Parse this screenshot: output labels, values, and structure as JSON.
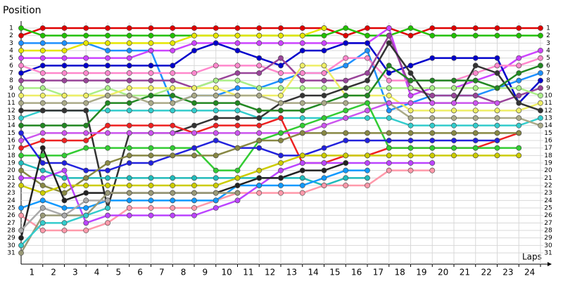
{
  "chart_data": {
    "type": "line",
    "y_title": "Position",
    "x_title": "Laps",
    "xlim": [
      0,
      24
    ],
    "xticks": [
      1,
      2,
      3,
      4,
      5,
      6,
      7,
      8,
      9,
      10,
      11,
      12,
      13,
      14,
      15,
      16,
      17,
      18,
      19,
      20,
      21,
      22,
      23,
      24
    ],
    "ylim": [
      1,
      31
    ],
    "y_inverted": true,
    "yticks": [
      1,
      2,
      3,
      4,
      5,
      6,
      7,
      8,
      9,
      10,
      11,
      12,
      13,
      14,
      15,
      16,
      17,
      18,
      19,
      20,
      21,
      22,
      23,
      24,
      25,
      26,
      27,
      28,
      29,
      30,
      31
    ],
    "grid": true,
    "series": [
      {
        "color": "#e00000",
        "values": [
          2,
          1,
          1,
          1,
          1,
          1,
          1,
          1,
          1,
          1,
          1,
          1,
          1,
          1,
          1,
          2,
          1,
          1,
          2,
          1,
          1,
          1,
          1,
          1,
          1
        ]
      },
      {
        "color": "#22c000",
        "values": [
          1,
          2,
          2,
          2,
          2,
          2,
          2,
          2,
          2,
          2,
          2,
          2,
          2,
          2,
          2,
          1,
          2,
          2,
          1,
          2,
          2,
          2,
          2,
          2,
          2
        ]
      },
      {
        "color": "#1e90ff",
        "values": [
          3,
          3,
          3,
          3,
          4,
          4,
          4,
          11,
          10,
          10,
          9,
          9,
          8,
          7,
          7,
          6,
          4,
          12,
          11,
          10,
          10,
          10,
          9,
          8,
          7
        ]
      },
      {
        "color": "#e6e600",
        "values": [
          4,
          4,
          4,
          3,
          3,
          3,
          3,
          3,
          2,
          2,
          2,
          2,
          2,
          2,
          1,
          null,
          null,
          null,
          null,
          null,
          null,
          null,
          null,
          null,
          null
        ]
      },
      {
        "color": "#cc44ff",
        "values": [
          5,
          5,
          5,
          5,
          5,
          5,
          4,
          4,
          3,
          3,
          3,
          3,
          3,
          3,
          3,
          3,
          3,
          1,
          10,
          9,
          9,
          8,
          7,
          5,
          4
        ]
      },
      {
        "color": "#0000cc",
        "values": [
          7,
          6,
          6,
          6,
          6,
          6,
          6,
          6,
          4,
          3,
          4,
          5,
          6,
          4,
          4,
          3,
          3,
          7,
          6,
          5,
          5,
          5,
          5,
          11,
          8
        ]
      },
      {
        "color": "#ff88cc",
        "values": [
          6,
          7,
          7,
          7,
          7,
          7,
          7,
          7,
          7,
          6,
          6,
          6,
          7,
          7,
          7,
          5,
          5,
          8,
          8,
          8,
          8,
          7,
          6,
          6,
          5
        ]
      },
      {
        "color": "#994499",
        "values": [
          8,
          8,
          8,
          8,
          8,
          8,
          8,
          8,
          9,
          8,
          7,
          7,
          5,
          8,
          8,
          8,
          7,
          2,
          9,
          10,
          10,
          10,
          11,
          10,
          9
        ]
      },
      {
        "color": "#aaee88",
        "values": [
          9,
          9,
          10,
          10,
          9,
          10,
          10,
          9,
          9,
          8,
          8,
          9,
          9,
          9,
          9,
          9,
          9,
          9,
          9,
          9,
          9,
          9,
          9,
          9,
          10
        ]
      },
      {
        "color": "#eeee66",
        "values": [
          10,
          10,
          10,
          10,
          10,
          9,
          9,
          9,
          9,
          9,
          10,
          10,
          10,
          6,
          6,
          10,
          10,
          10,
          12,
          12,
          12,
          12,
          12,
          12,
          11
        ]
      },
      {
        "color": "#33cccc",
        "values": [
          13,
          12,
          12,
          12,
          12,
          12,
          12,
          12,
          12,
          12,
          12,
          13,
          13,
          13,
          13,
          13,
          13,
          13,
          14,
          14,
          14,
          14,
          14,
          14,
          13
        ]
      },
      {
        "color": "#333333",
        "values": [
          12,
          12,
          12,
          12,
          25,
          15,
          15,
          15,
          14,
          13,
          13,
          13,
          11,
          10,
          10,
          9,
          8,
          3,
          7,
          11,
          11,
          6,
          7,
          11,
          12
        ]
      },
      {
        "color": "#228822",
        "values": [
          14,
          14,
          14,
          14,
          11,
          11,
          10,
          10,
          11,
          11,
          11,
          12,
          12,
          12,
          11,
          10,
          10,
          6,
          8,
          8,
          8,
          8,
          9,
          7,
          6
        ]
      },
      {
        "color": "#aaaa88",
        "values": [
          11,
          11,
          11,
          11,
          10,
          10,
          11,
          11,
          10,
          10,
          10,
          10,
          11,
          11,
          11,
          11,
          11,
          11,
          13,
          13,
          13,
          13,
          13,
          13,
          14
        ]
      },
      {
        "color": "#ee2222",
        "values": [
          17,
          16,
          16,
          16,
          14,
          14,
          14,
          14,
          15,
          14,
          14,
          14,
          13,
          19,
          19,
          18,
          18,
          17,
          17,
          17,
          17,
          17,
          16,
          15,
          null
        ]
      },
      {
        "color": "#cc55ee",
        "values": [
          16,
          15,
          15,
          15,
          15,
          15,
          15,
          15,
          15,
          15,
          15,
          15,
          15,
          15,
          14,
          13,
          12,
          11,
          11,
          11,
          11,
          11,
          11,
          null,
          null
        ]
      },
      {
        "color": "#33cc33",
        "values": [
          18,
          18,
          18,
          17,
          17,
          17,
          17,
          17,
          17,
          20,
          20,
          16,
          15,
          14,
          13,
          12,
          11,
          17,
          17,
          17,
          17,
          17,
          17,
          17,
          null
        ]
      },
      {
        "color": "#2222dd",
        "values": [
          15,
          19,
          19,
          20,
          20,
          19,
          19,
          18,
          17,
          16,
          17,
          17,
          18,
          18,
          17,
          16,
          16,
          16,
          16,
          16,
          16,
          16,
          16,
          null,
          null
        ]
      },
      {
        "color": "#22bbbb",
        "values": [
          19,
          20,
          21,
          21,
          21,
          21,
          21,
          21,
          21,
          21,
          21,
          21,
          21,
          21,
          22,
          21,
          21,
          null,
          null,
          null,
          null,
          null,
          null,
          null,
          null
        ]
      },
      {
        "color": "#888844",
        "values": [
          20,
          22,
          23,
          21,
          19,
          18,
          18,
          18,
          18,
          18,
          17,
          16,
          16,
          15,
          15,
          15,
          15,
          15,
          15,
          15,
          15,
          15,
          15,
          15,
          null
        ]
      },
      {
        "color": "#ff99aa",
        "values": [
          26,
          28,
          28,
          28,
          27,
          25,
          25,
          25,
          25,
          24,
          23,
          23,
          23,
          23,
          22,
          22,
          22,
          20,
          20,
          20,
          null,
          null,
          null,
          null,
          null
        ]
      },
      {
        "color": "#cccc00",
        "values": [
          22,
          23,
          22,
          22,
          22,
          22,
          22,
          22,
          22,
          22,
          21,
          20,
          19,
          18,
          18,
          18,
          18,
          18,
          18,
          18,
          18,
          18,
          18,
          18,
          null
        ]
      },
      {
        "color": "#bb44ff",
        "values": [
          21,
          21,
          20,
          27,
          26,
          26,
          26,
          26,
          26,
          25,
          24,
          22,
          20,
          19,
          19,
          19,
          19,
          19,
          19,
          19,
          null,
          null,
          null,
          null,
          null
        ]
      },
      {
        "color": "#1199ff",
        "values": [
          25,
          24,
          25,
          25,
          24,
          24,
          24,
          24,
          24,
          24,
          22,
          22,
          22,
          22,
          21,
          20,
          20,
          null,
          null,
          null,
          null,
          null,
          null,
          null,
          null
        ]
      },
      {
        "color": "#222222",
        "values": [
          29,
          17,
          24,
          23,
          23,
          23,
          23,
          23,
          23,
          23,
          22,
          21,
          21,
          20,
          20,
          19,
          null,
          null,
          null,
          null,
          null,
          null,
          null,
          null,
          null
        ]
      },
      {
        "color": "#999977",
        "values": [
          31,
          26,
          26,
          26,
          23,
          23,
          23,
          23,
          23,
          23,
          23,
          null,
          null,
          null,
          null,
          null,
          null,
          null,
          null,
          null,
          null,
          null,
          null,
          null,
          null
        ]
      },
      {
        "color": "#33cccc",
        "values": [
          30,
          27,
          27,
          26,
          25,
          null,
          null,
          null,
          null,
          null,
          null,
          null,
          null,
          null,
          null,
          null,
          null,
          null,
          null,
          null,
          null,
          null,
          null,
          null,
          null
        ]
      },
      {
        "color": "#aaaaaa",
        "values": [
          28,
          25,
          26,
          24,
          24,
          null,
          null,
          null,
          null,
          null,
          null,
          null,
          null,
          null,
          null,
          null,
          null,
          null,
          null,
          null,
          null,
          null,
          null,
          null,
          null
        ]
      }
    ]
  }
}
